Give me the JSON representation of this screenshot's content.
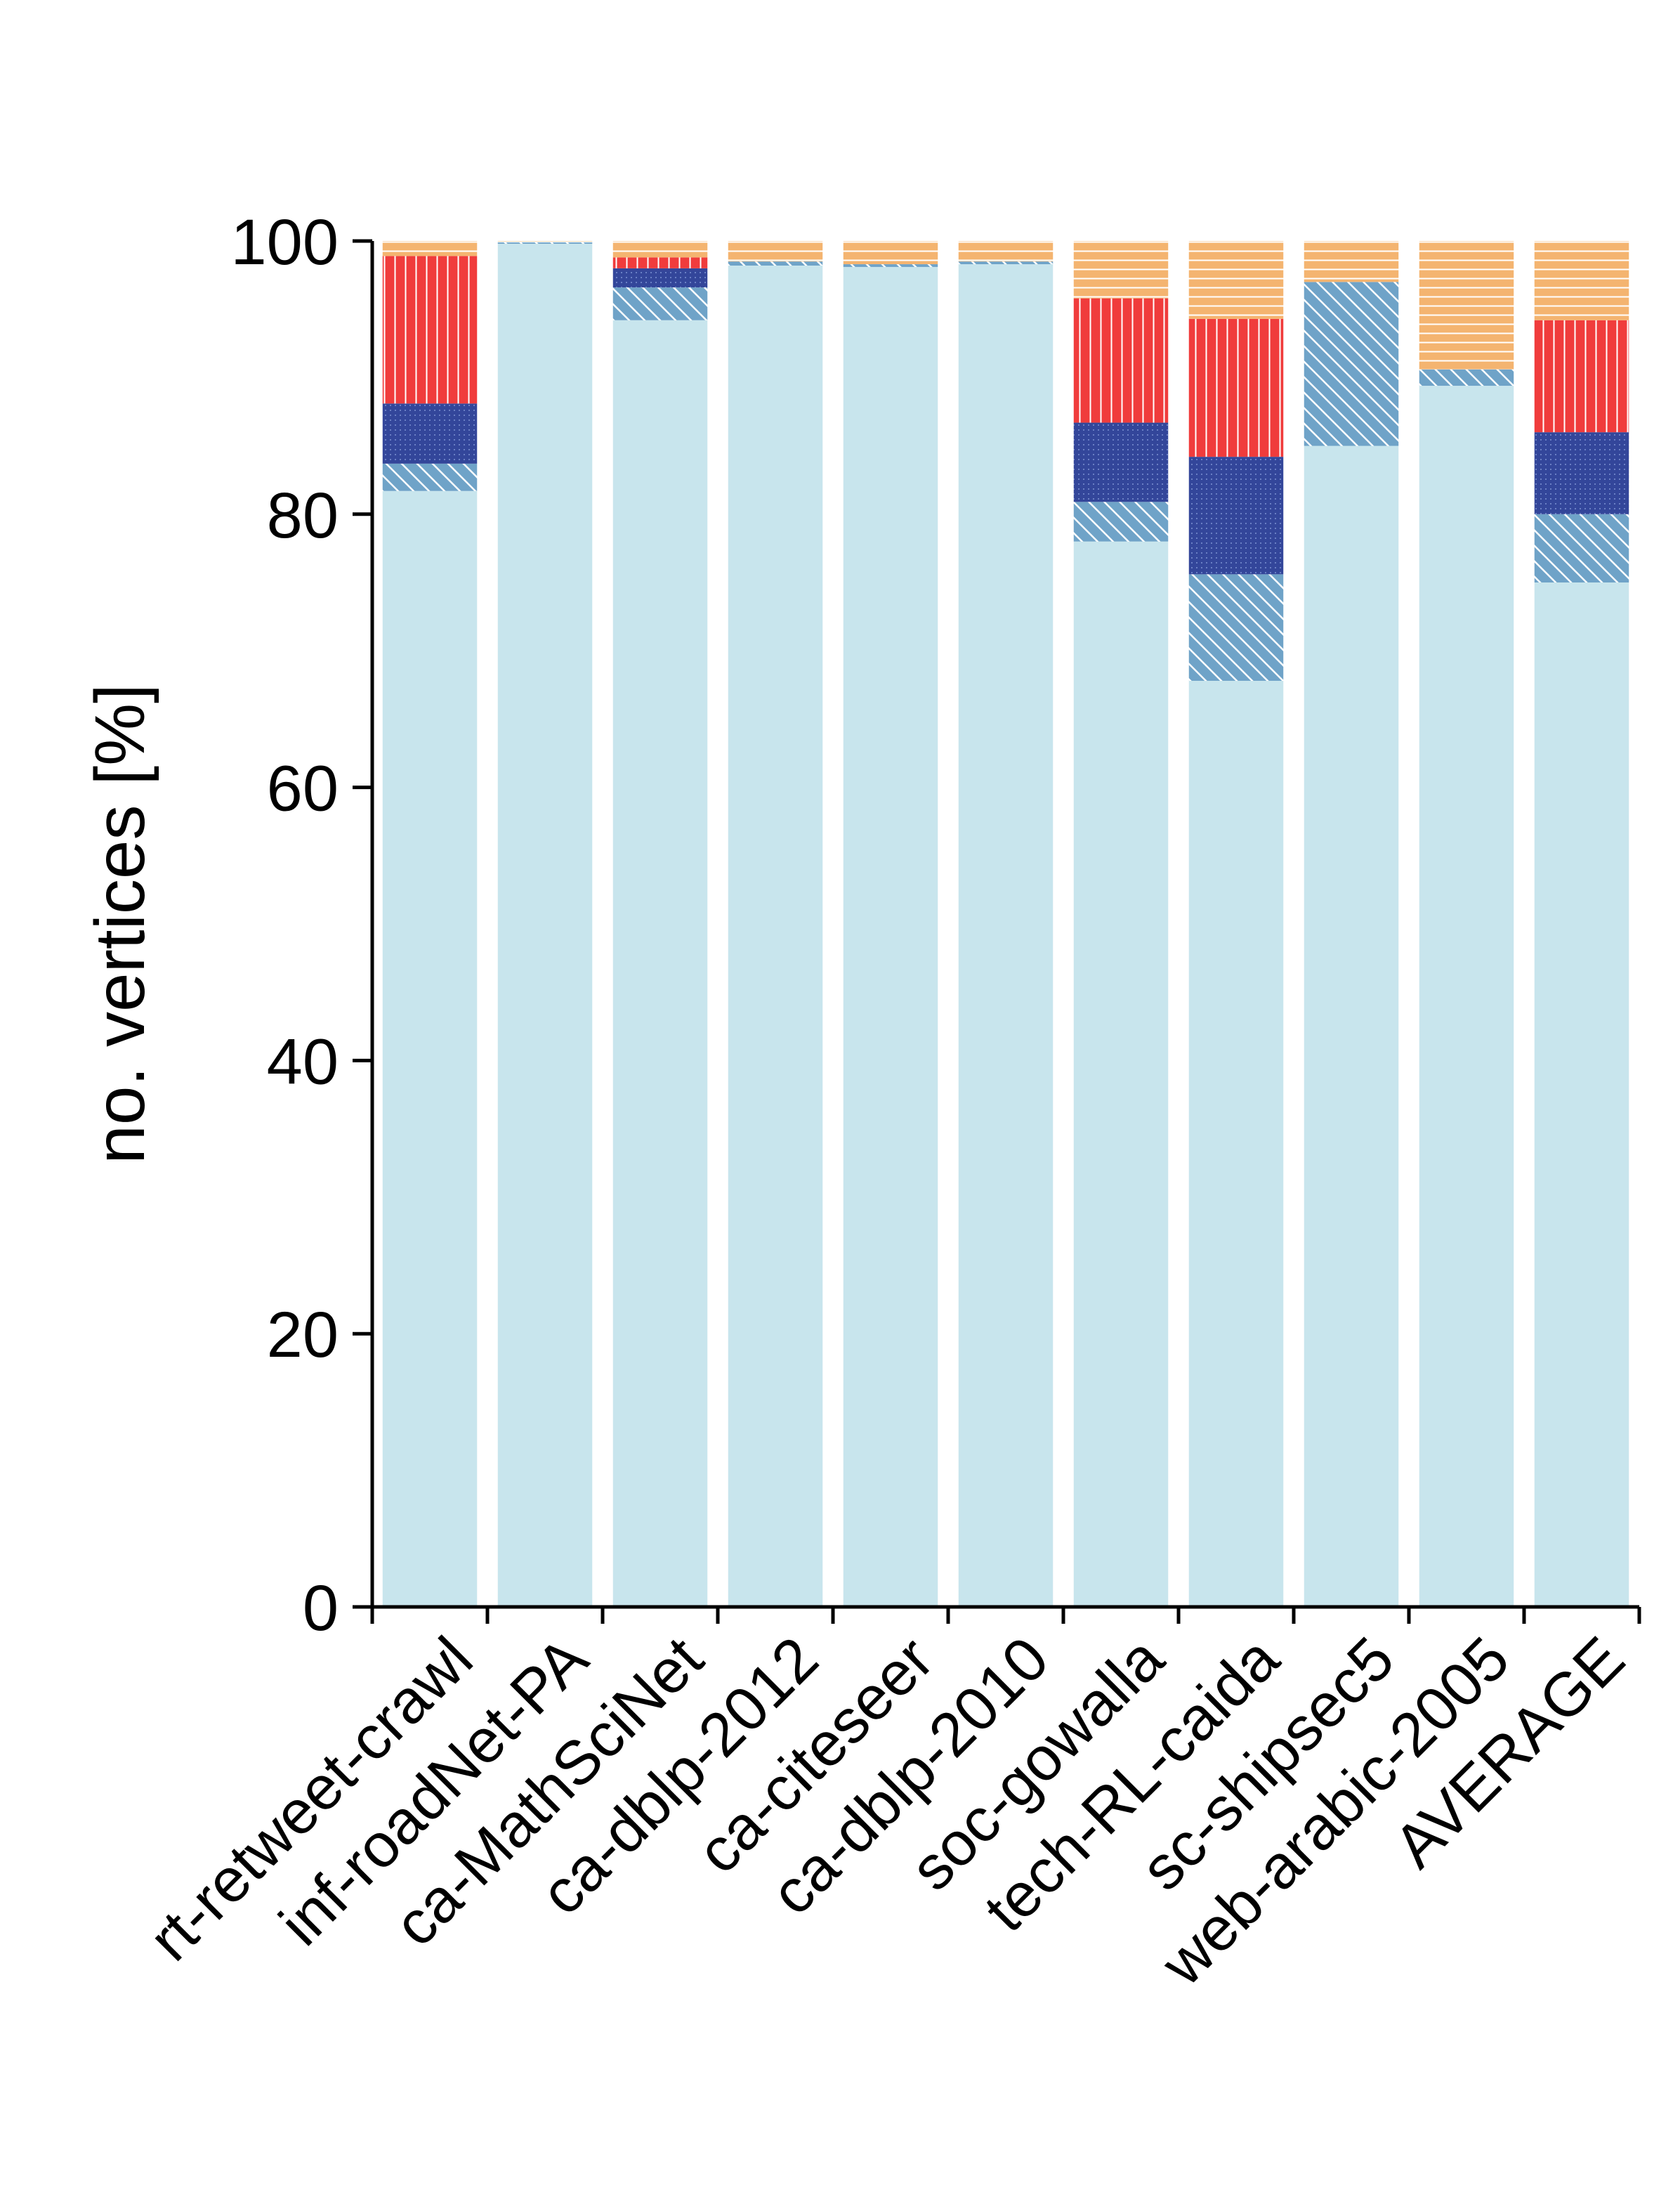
{
  "chart_data": {
    "type": "bar",
    "stacked": true,
    "title": "",
    "xlabel": "",
    "ylabel": "no. vertices [%]",
    "ylim": [
      0,
      100
    ],
    "yticks": [
      0,
      20,
      40,
      60,
      80,
      100
    ],
    "categories": [
      "rt-retweet-crawl",
      "inf-roadNet-PA",
      "ca-MathSciNet",
      "ca-dblp-2012",
      "ca-citeseer",
      "ca-dblp-2010",
      "soc-gowalla",
      "tech-RL-caida",
      "sc-shipsec5",
      "web-arabic-2005",
      "AVERAGE"
    ],
    "series": [
      {
        "name": "segment-1",
        "color": "#c8e5ed",
        "pattern": "solid",
        "values": [
          81.7,
          99.8,
          94.2,
          98.2,
          98.1,
          98.3,
          78.0,
          67.8,
          85.0,
          89.4,
          75.0
        ]
      },
      {
        "name": "segment-2",
        "color": "#6fa3c8",
        "pattern": "diagonal",
        "values": [
          2.0,
          0.1,
          2.4,
          0.3,
          0.2,
          0.2,
          2.9,
          7.8,
          12.0,
          1.2,
          5.0
        ]
      },
      {
        "name": "segment-3",
        "color": "#33469a",
        "pattern": "dots",
        "values": [
          4.4,
          0.0,
          1.4,
          0.0,
          0.0,
          0.0,
          5.8,
          8.6,
          0.0,
          0.0,
          6.0
        ]
      },
      {
        "name": "segment-4",
        "color": "#f03c3c",
        "pattern": "vertical",
        "values": [
          10.8,
          0.0,
          0.8,
          0.0,
          0.0,
          0.0,
          9.1,
          10.1,
          0.0,
          0.0,
          8.2
        ]
      },
      {
        "name": "segment-5",
        "color": "#f4b470",
        "pattern": "horizontal",
        "values": [
          1.1,
          0.1,
          1.2,
          1.5,
          1.7,
          1.5,
          4.2,
          5.7,
          3.0,
          9.4,
          5.8
        ]
      }
    ]
  }
}
